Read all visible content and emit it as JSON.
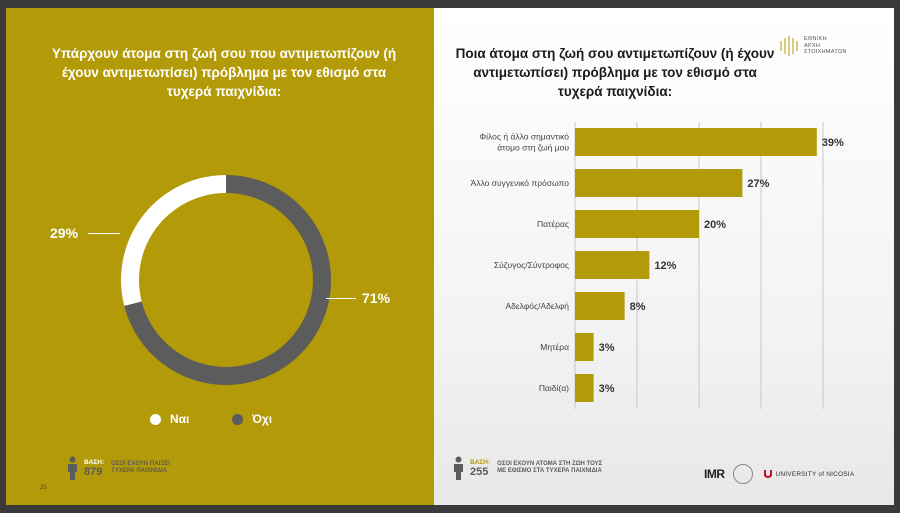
{
  "left_panel": {
    "title": "Υπάρχουν άτομα στη ζωή σου που αντιμετωπίζουν (ή έχουν αντιμετωπίσει) πρόβλημα με τον εθισμό στα τυχερά παιχνίδια:",
    "base_label": "ΒΑΣΗ:",
    "base_count": "879",
    "base_desc_1": "ΟΣΟΙ ΕΧΟΥΝ ΠΑΙΞΕΙ",
    "base_desc_2": "ΤΥΧΕΡΑ ΠΑΙΧΝΙΔΙΑ",
    "page_number": "25"
  },
  "right_panel": {
    "title": "Ποια άτομα στη ζωή σου αντιμετωπίζουν (ή έχουν αντιμετωπίσει) πρόβλημα με τον εθισμό στα τυχερά παιχνίδια:",
    "base_label": "ΒΑΣΗ:",
    "base_count": "255",
    "base_desc_1": "ΟΣΟΙ ΕΧΟΥΝ ΑΤΟΜΑ ΣΤΗ ΖΩΗ ΤΟΥΣ",
    "base_desc_2": "ΜΕ ΕΘΙΣΜΟ ΣΤΑ ΤΥΧΕΡΑ ΠΑΙΧΝΙΔΙΑ",
    "logo_top": [
      "ΕΘΝΙΚΗ",
      "ΑΡΧΗ",
      "ΣΤΟΙΧΗΜΑΤΩΝ"
    ],
    "logo_imr": "IMR",
    "logo_unic": "UNIVERSITY of NICOSIA"
  },
  "colors": {
    "gold": "#b39a08",
    "dark_grey": "#5c5c5c",
    "white": "#ffffff"
  },
  "chart_data": [
    {
      "type": "pie",
      "style": "donut",
      "title": "Υπάρχουν άτομα στη ζωή σου που αντιμετωπίζουν (ή έχουν αντιμετωπίσει) πρόβλημα με τον εθισμό στα τυχερά παιχνίδια:",
      "slices": [
        {
          "label": "Ναι",
          "value": 29,
          "display": "29%",
          "color": "#ffffff"
        },
        {
          "label": "Όχι",
          "value": 71,
          "display": "71%",
          "color": "#5c5c5c"
        }
      ],
      "legend_position": "bottom"
    },
    {
      "type": "bar",
      "orientation": "horizontal",
      "title": "Ποια άτομα στη ζωή σου αντιμετωπίζουν (ή έχουν αντιμετωπίσει) πρόβλημα με τον εθισμό στα τυχερά παιχνίδια:",
      "categories": [
        [
          "Φίλος ή άλλο σημαντικό",
          "άτομο στη ζωή μου"
        ],
        [
          "Άλλο συγγενικό πρόσωπο"
        ],
        [
          "Πατέρας"
        ],
        [
          "Σύζυγος/Σύντροφος"
        ],
        [
          "Αδελφός/Αδελφή"
        ],
        [
          "Μητέρα"
        ],
        [
          "Παιδί(α)"
        ]
      ],
      "values": [
        39,
        27,
        20,
        12,
        8,
        3,
        3
      ],
      "value_labels": [
        "39%",
        "27%",
        "20%",
        "12%",
        "8%",
        "3%",
        "3%"
      ],
      "xlim": [
        0,
        40
      ],
      "grid": true,
      "bar_color": "#b39a08"
    }
  ]
}
